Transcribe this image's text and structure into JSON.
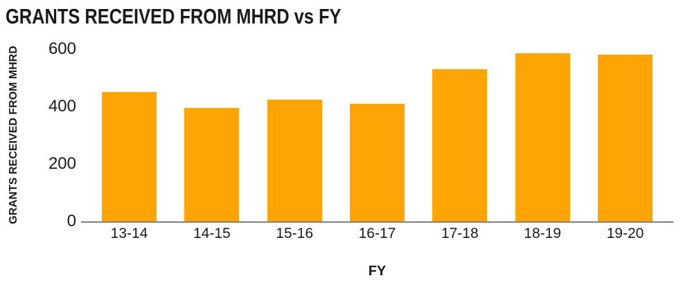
{
  "chart_data": {
    "type": "bar",
    "title": "GRANTS RECEIVED FROM MHRD vs FY",
    "xlabel": "FY",
    "ylabel": "GRANTS RECEIVED FROM MHRD",
    "categories": [
      "13-14",
      "14-15",
      "15-16",
      "16-17",
      "17-18",
      "18-19",
      "19-20"
    ],
    "values": [
      450,
      395,
      425,
      410,
      530,
      585,
      580
    ],
    "ylim": [
      0,
      600
    ],
    "yticks": [
      0,
      200,
      400,
      600
    ],
    "grid": false,
    "legend": false,
    "colors": {
      "bar": "#FFA405",
      "axis_line": "#7F7F7F",
      "text": "#1A1A1A",
      "background": "#FFFFFF"
    }
  }
}
